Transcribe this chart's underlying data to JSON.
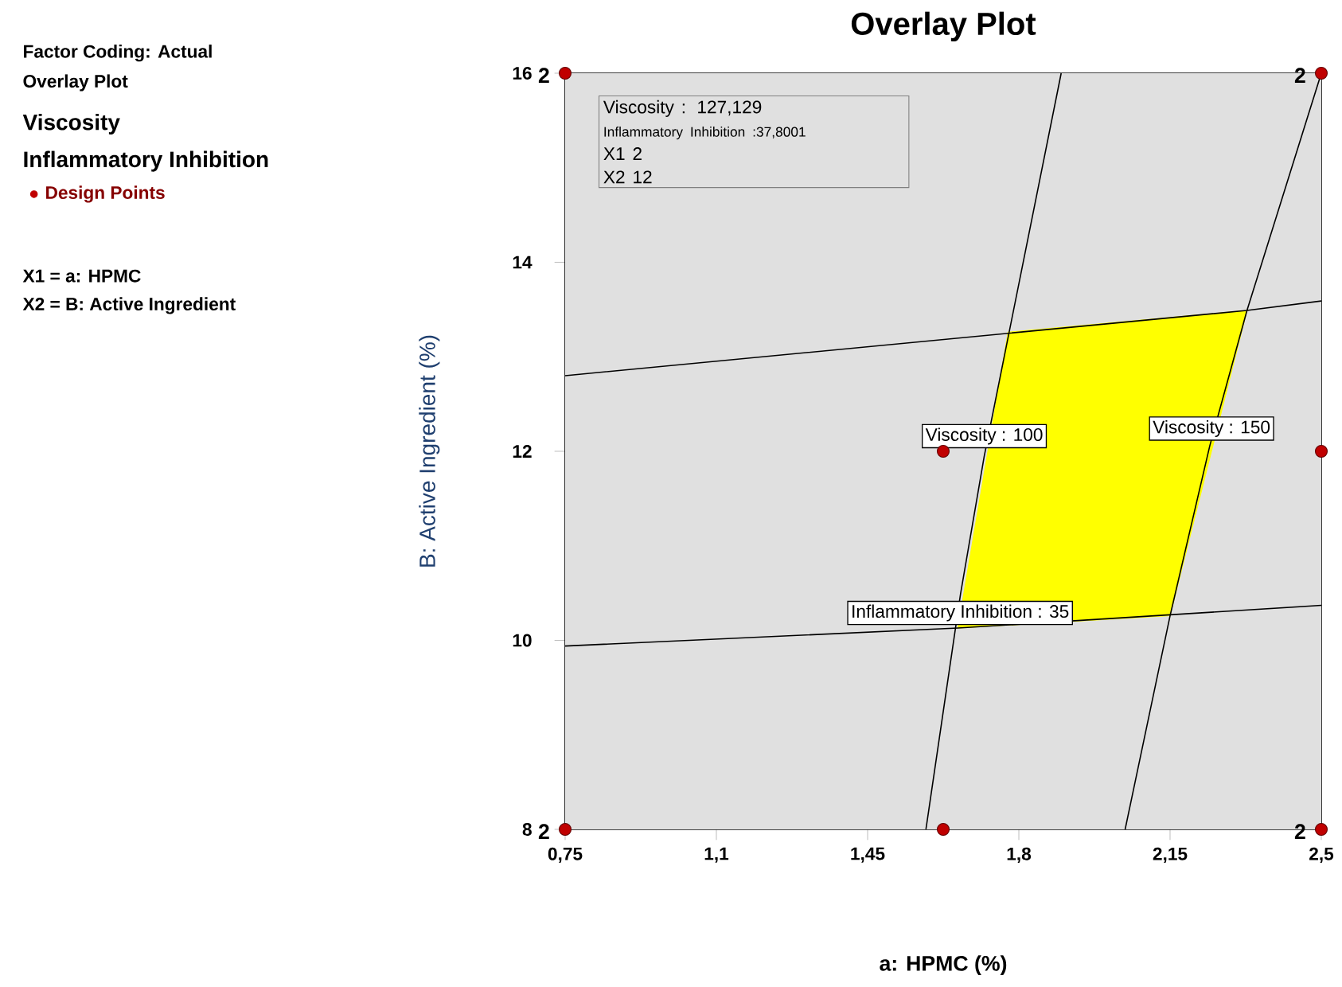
{
  "chart_data": {
    "type": "line",
    "title": "Overlay Plot",
    "xlabel": "a: HPMC (%)",
    "ylabel": "B: Active Ingredient (%)",
    "xlim": [
      0.75,
      2.5
    ],
    "ylim": [
      8,
      16
    ],
    "xticks": [
      {
        "value": 0.75,
        "label": "0,75"
      },
      {
        "value": 1.1,
        "label": "1,1"
      },
      {
        "value": 1.45,
        "label": "1,45"
      },
      {
        "value": 1.8,
        "label": "1,8"
      },
      {
        "value": 2.15,
        "label": "2,15"
      },
      {
        "value": 2.5,
        "label": "2,5"
      }
    ],
    "yticks": [
      8,
      10,
      12,
      14,
      16
    ],
    "grid": false,
    "legend": "left",
    "series": [
      {
        "type": "area",
        "color": "#ffff00",
        "x": [
          1.659,
          2.15,
          2.328,
          1.775
        ],
        "values": [
          10.13,
          10.26,
          13.49,
          13.26
        ]
      },
      {
        "color": "#000000",
        "x": [
          1.585,
          1.665,
          1.72,
          1.898
        ],
        "values": [
          8,
          10.49,
          11.95,
          16
        ]
      },
      {
        "color": "#000000",
        "x": [
          2.046,
          2.15,
          2.242,
          2.328,
          2.5
        ],
        "values": [
          8,
          10.26,
          12.06,
          13.49,
          16
        ]
      },
      {
        "color": "#000000",
        "x": [
          0.75,
          1.659,
          2.5
        ],
        "values": [
          9.94,
          10.13,
          10.37
        ]
      },
      {
        "color": "#000000",
        "x": [
          0.75,
          2.328,
          2.5
        ],
        "values": [
          12.8,
          13.49,
          13.59
        ]
      },
      {
        "type": "scatter",
        "name": "Design Points",
        "color": "#c00000",
        "marker": "circle",
        "x": [
          0.75,
          2.5,
          2.5,
          2.5,
          0.75,
          1.625,
          1.625
        ],
        "values": [
          16,
          16,
          12,
          8,
          8,
          8,
          12
        ]
      }
    ],
    "annotations": [
      "Factor Coding: Actual",
      "Overlay Plot",
      "Viscosity",
      "Inflammatory Inhibition",
      "X1 = a: HPMC",
      "X2 = B: Active Ingredient",
      "Viscosity : 127,129",
      "Inflammatory Inhibition :37,8001",
      "X1 2",
      "X2 12",
      {
        "text": "Viscosity : 100",
        "x": 1.72,
        "y": 12.16
      },
      {
        "text": "Viscosity : 150",
        "x": 2.246,
        "y": 12.24
      },
      {
        "text": "Inflammatory Inhibition : 35",
        "x": 1.664,
        "y": 10.29
      },
      {
        "text": "2",
        "x": 0.75,
        "y": 16
      },
      {
        "text": "2",
        "x": 2.5,
        "y": 16
      },
      {
        "text": "2",
        "x": 2.5,
        "y": 8
      },
      {
        "text": "2",
        "x": 0.75,
        "y": 8
      }
    ]
  }
}
